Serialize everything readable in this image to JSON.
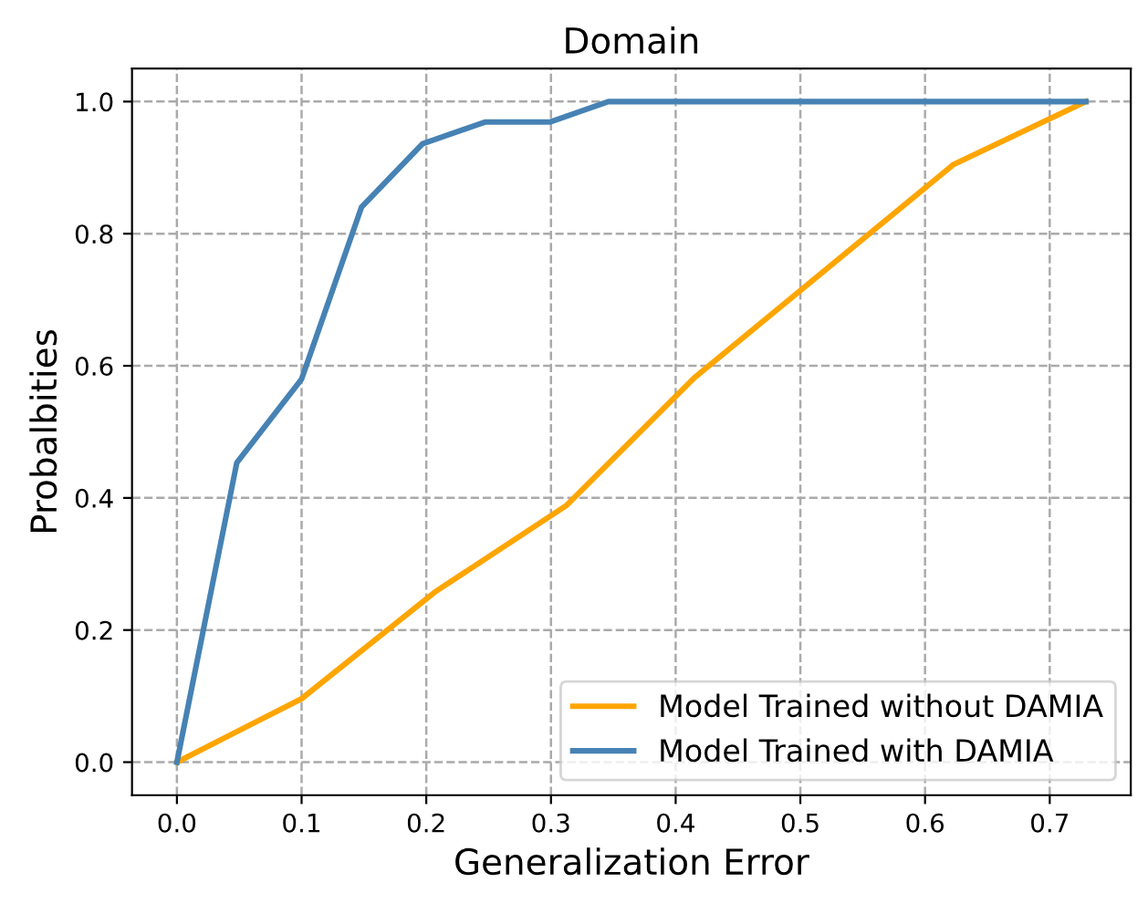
{
  "chart_data": {
    "type": "line",
    "title": "Domain",
    "xlabel": "Generalization Error",
    "ylabel": "Probalbities",
    "series": [
      {
        "name": "Model Trained without DAMIA",
        "color": "#ffa500",
        "x": [
          0,
          0.1,
          0.208,
          0.312,
          0.415,
          0.623,
          0.729
        ],
        "values": [
          0,
          0.096,
          0.259,
          0.388,
          0.582,
          0.905,
          1.0
        ]
      },
      {
        "name": "Model Trained with DAMIA",
        "color": "#4682b4",
        "x": [
          0,
          0.048,
          0.1,
          0.148,
          0.197,
          0.247,
          0.299,
          0.346,
          0.729
        ],
        "values": [
          0,
          0.453,
          0.58,
          0.84,
          0.936,
          0.969,
          0.969,
          1.0,
          1.0
        ]
      }
    ],
    "xlim": [
      -0.036,
      0.765
    ],
    "ylim": [
      -0.05,
      1.05
    ],
    "xticks": [
      {
        "value": 0,
        "label": "0.0"
      },
      0.1,
      0.2,
      0.3,
      0.4,
      0.5,
      0.6,
      0.7
    ],
    "yticks": [
      {
        "value": 0,
        "label": "0.0"
      },
      0.2,
      0.4,
      0.6,
      0.8,
      {
        "value": 1,
        "label": "1.0"
      }
    ],
    "grid": true,
    "legend": "lower right",
    "line_style": "solid",
    "marker": "none"
  }
}
